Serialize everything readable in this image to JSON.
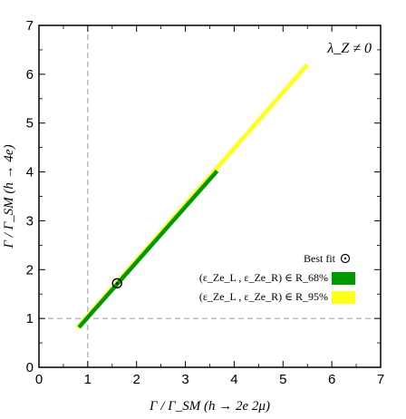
{
  "chart_data": {
    "type": "line",
    "xlabel": "Γ / Γ_SM (h → 2e 2μ)",
    "ylabel": "Γ / Γ_SM (h → 4e)",
    "xlim": [
      0,
      7
    ],
    "ylim": [
      0,
      7
    ],
    "xticks": [
      "0",
      "1",
      "2",
      "3",
      "4",
      "5",
      "6",
      "7"
    ],
    "yticks": [
      "0",
      "1",
      "2",
      "3",
      "4",
      "5",
      "6",
      "7"
    ],
    "grid": false,
    "annotation": "λ_Z ≠ 0",
    "reference_lines": {
      "x": 1,
      "y": 1,
      "style": "dashed"
    },
    "legend_placement": "lower-right",
    "series": [
      {
        "name": "(ε_Ze_L , ε_Ze_R) ∈ R_95%",
        "color": "#ffff1a",
        "x": [
          0.78,
          5.5
        ],
        "y": [
          0.8,
          6.2
        ]
      },
      {
        "name": "(ε_Ze_L , ε_Ze_R) ∈ R_68%",
        "color": "#009a00",
        "x": [
          0.82,
          3.65
        ],
        "y": [
          0.82,
          4.02
        ]
      }
    ],
    "best_fit": {
      "name": "Best fit",
      "x": 1.6,
      "y": 1.72
    }
  }
}
